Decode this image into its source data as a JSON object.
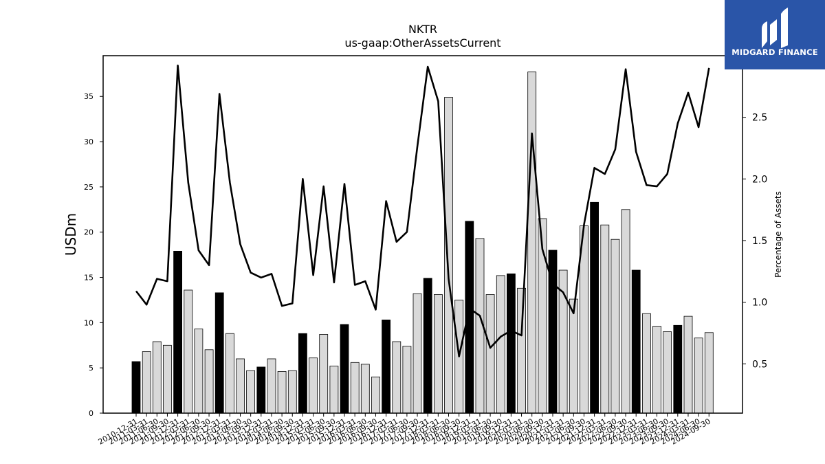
{
  "brand": {
    "name": "MIDGARD FINANCE",
    "bg_color": "#2a55a8",
    "icon": "midgard-logo-icon"
  },
  "chart_data": {
    "type": "bar",
    "title": "NKTR",
    "subtitle": "us-gaap:OtherAssetsCurrent",
    "ylabel": "USDm",
    "y2label": "Percentage of Assets",
    "ylim": [
      0,
      39.5
    ],
    "y2lim": [
      0.1,
      3.0
    ],
    "yticks": [
      0,
      5,
      10,
      15,
      20,
      25,
      30,
      35
    ],
    "y2ticks": [
      0.5,
      1.0,
      1.5,
      2.0,
      2.5
    ],
    "grid": false,
    "categories": [
      "2010-12-31",
      "2011-03-31",
      "2011-06-30",
      "2011-09-30",
      "2011-12-31",
      "2012-03-31",
      "2012-06-30",
      "2012-09-30",
      "2012-12-31",
      "2013-03-31",
      "2013-06-30",
      "2013-09-30",
      "2013-12-31",
      "2014-03-31",
      "2014-06-30",
      "2014-09-30",
      "2014-12-31",
      "2015-03-31",
      "2015-06-30",
      "2015-09-30",
      "2015-12-31",
      "2016-03-31",
      "2016-06-30",
      "2016-09-30",
      "2016-12-31",
      "2017-03-31",
      "2017-06-30",
      "2017-09-30",
      "2017-12-31",
      "2018-03-31",
      "2018-06-30",
      "2018-09-30",
      "2018-12-31",
      "2019-03-31",
      "2019-06-30",
      "2019-09-30",
      "2019-12-31",
      "2020-03-31",
      "2020-06-30",
      "2020-09-30",
      "2020-12-31",
      "2021-03-31",
      "2021-06-30",
      "2021-09-30",
      "2021-12-31",
      "2022-03-31",
      "2022-06-30",
      "2022-09-30",
      "2022-12-31",
      "2023-03-31",
      "2023-06-30",
      "2023-09-30",
      "2023-12-31",
      "2024-03-31",
      "2024-06-30",
      "2024-09-30"
    ],
    "series": [
      {
        "type": "bar",
        "values": [
          5.7,
          6.8,
          7.9,
          7.5,
          17.9,
          13.6,
          9.3,
          7.0,
          13.3,
          8.8,
          6.0,
          4.7,
          5.1,
          6.0,
          4.6,
          4.7,
          8.8,
          6.1,
          8.7,
          5.2,
          9.8,
          5.6,
          5.4,
          4.0,
          10.3,
          7.9,
          7.4,
          13.2,
          14.9,
          13.1,
          34.9,
          12.5,
          21.2,
          19.3,
          13.1,
          15.2,
          15.4,
          13.8,
          37.7,
          21.5,
          18.0,
          15.8,
          12.6,
          20.7,
          23.3,
          20.8,
          19.2,
          22.5,
          15.8,
          11.0,
          9.6,
          9.0,
          9.7,
          10.7,
          8.3,
          8.9
        ],
        "highlight_color": "#000000",
        "color": "#d9d9d9"
      },
      {
        "type": "line",
        "axis": "right",
        "values": [
          1.09,
          0.98,
          1.19,
          1.17,
          2.92,
          1.97,
          1.42,
          1.3,
          2.69,
          1.97,
          1.47,
          1.24,
          1.2,
          1.23,
          0.97,
          0.99,
          2.0,
          1.22,
          1.94,
          1.16,
          1.96,
          1.14,
          1.17,
          0.94,
          1.82,
          1.49,
          1.57,
          2.26,
          2.91,
          2.63,
          1.19,
          0.56,
          0.95,
          0.89,
          0.63,
          0.72,
          0.77,
          0.73,
          2.37,
          1.43,
          1.15,
          1.08,
          0.91,
          1.63,
          2.09,
          2.04,
          2.24,
          2.89,
          2.22,
          1.95,
          1.94,
          2.04,
          2.45,
          2.7,
          2.42,
          2.9
        ],
        "color": "#000000"
      }
    ]
  }
}
